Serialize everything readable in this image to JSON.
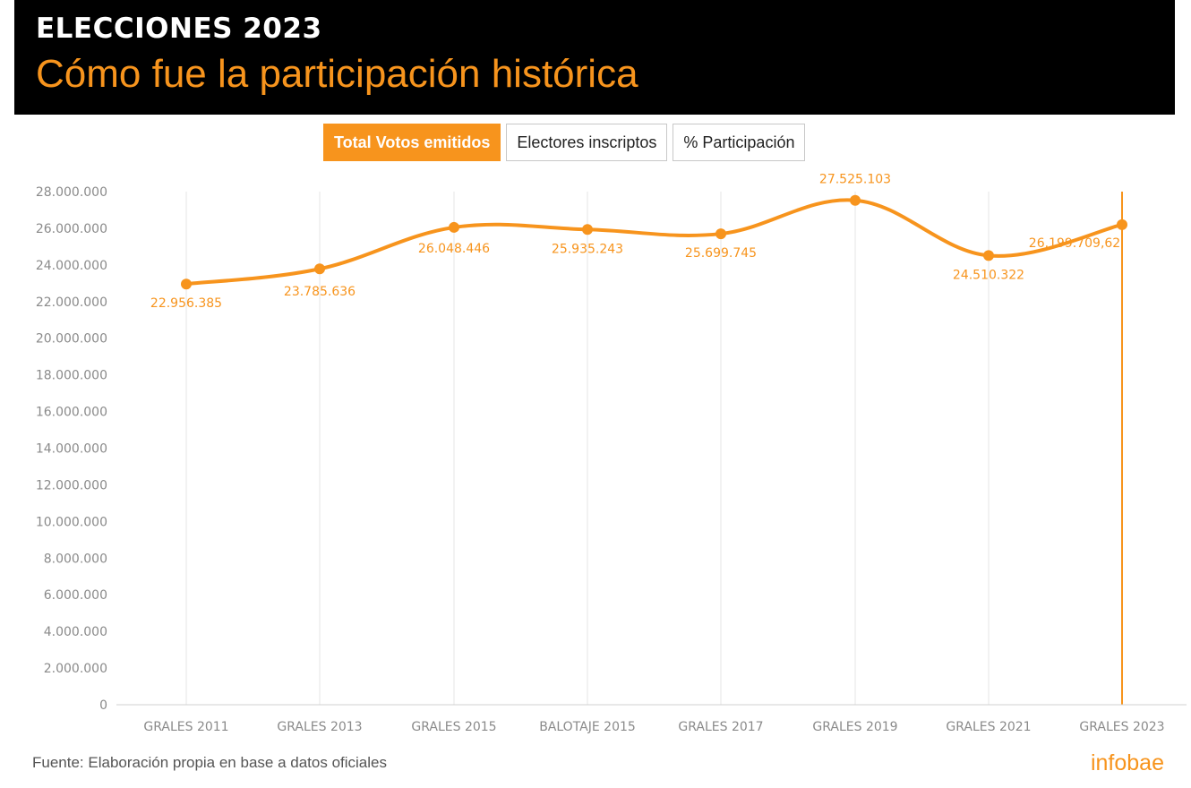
{
  "header": {
    "kicker": "ELECCIONES 2023",
    "title": "Cómo fue la participación histórica"
  },
  "tabs": [
    {
      "label": "Total Votos emitidos",
      "active": true
    },
    {
      "label": "Electores inscriptos",
      "active": false
    },
    {
      "label": "% Participación",
      "active": false
    }
  ],
  "colors": {
    "accent": "#f7941d",
    "header_bg": "#000000",
    "grid": "#e6e6e6",
    "axis_text": "#8a8a8a"
  },
  "chart_data": {
    "type": "line",
    "title": "",
    "xlabel": "",
    "ylabel": "",
    "categories": [
      "GRALES 2011",
      "GRALES 2013",
      "GRALES 2015",
      "BALOTAJE 2015",
      "GRALES 2017",
      "GRALES 2019",
      "GRALES 2021",
      "GRALES 2023"
    ],
    "series": [
      {
        "values": [
          22956385,
          23785636,
          26048446,
          25935243,
          25699745,
          27525103,
          24510322,
          26199709.62
        ],
        "data_labels": [
          "22.956.385",
          "23.785.636",
          "26.048.446",
          "25.935.243",
          "25.699.745",
          "27.525.103",
          "24.510.322",
          "26.199.709,62"
        ]
      }
    ],
    "ylim": [
      0,
      28000000
    ],
    "yticks": [
      0,
      2000000,
      4000000,
      6000000,
      8000000,
      10000000,
      12000000,
      14000000,
      16000000,
      18000000,
      20000000,
      22000000,
      24000000,
      26000000,
      28000000
    ],
    "ytick_labels": [
      "0",
      "2.000.000",
      "4.000.000",
      "6.000.000",
      "8.000.000",
      "10.000.000",
      "12.000.000",
      "14.000.000",
      "16.000.000",
      "18.000.000",
      "20.000.000",
      "22.000.000",
      "24.000.000",
      "26.000.000",
      "28.000.000"
    ],
    "grid": true,
    "highlighted_category": "GRALES 2023",
    "smooth": true
  },
  "footer": {
    "source": "Fuente: Elaboración propia en base a datos oficiales",
    "brand": "infobae"
  }
}
